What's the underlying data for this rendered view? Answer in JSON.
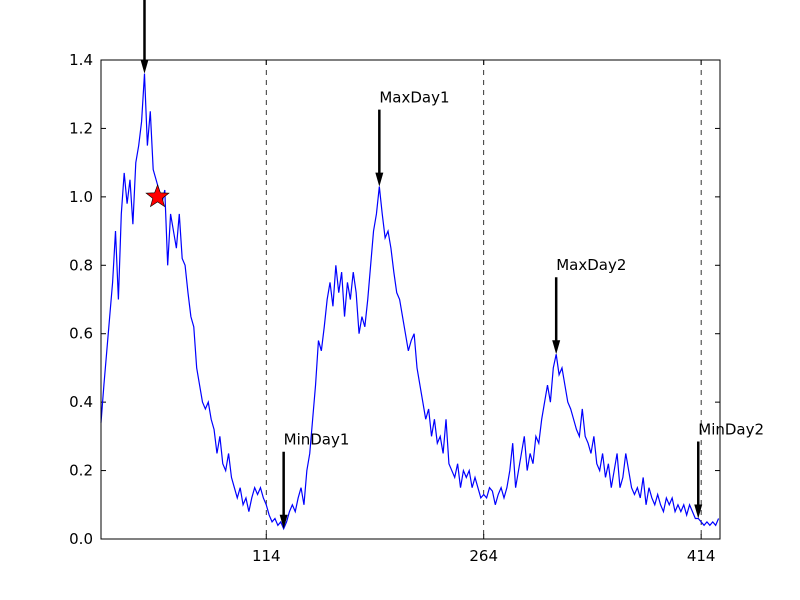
{
  "chart_data": {
    "type": "line",
    "x": [
      0,
      2,
      4,
      6,
      8,
      10,
      12,
      14,
      16,
      18,
      20,
      22,
      24,
      26,
      28,
      30,
      32,
      34,
      36,
      38,
      40,
      42,
      44,
      46,
      48,
      50,
      52,
      54,
      56,
      58,
      60,
      62,
      64,
      66,
      68,
      70,
      72,
      74,
      76,
      78,
      80,
      82,
      84,
      86,
      88,
      90,
      92,
      94,
      96,
      98,
      100,
      102,
      104,
      106,
      108,
      110,
      112,
      114,
      116,
      118,
      120,
      122,
      124,
      126,
      128,
      130,
      132,
      134,
      136,
      138,
      140,
      142,
      144,
      146,
      148,
      150,
      152,
      154,
      156,
      158,
      160,
      162,
      164,
      166,
      168,
      170,
      172,
      174,
      176,
      178,
      180,
      182,
      184,
      186,
      188,
      190,
      192,
      194,
      196,
      198,
      200,
      202,
      204,
      206,
      208,
      210,
      212,
      214,
      216,
      218,
      220,
      222,
      224,
      226,
      228,
      230,
      232,
      234,
      236,
      238,
      240,
      242,
      244,
      246,
      248,
      250,
      252,
      254,
      256,
      258,
      260,
      262,
      264,
      266,
      268,
      270,
      272,
      274,
      276,
      278,
      280,
      282,
      284,
      286,
      288,
      290,
      292,
      294,
      296,
      298,
      300,
      302,
      304,
      306,
      308,
      310,
      312,
      314,
      316,
      318,
      320,
      322,
      324,
      326,
      328,
      330,
      332,
      334,
      336,
      338,
      340,
      342,
      344,
      346,
      348,
      350,
      352,
      354,
      356,
      358,
      360,
      362,
      364,
      366,
      368,
      370,
      372,
      374,
      376,
      378,
      380,
      382,
      384,
      386,
      388,
      390,
      392,
      394,
      396,
      398,
      400,
      402,
      404,
      406,
      408,
      410,
      412,
      414,
      416,
      418,
      420,
      422,
      424,
      426
    ],
    "series": [
      {
        "color": "#0000ff",
        "values": [
          0.34,
          0.45,
          0.55,
          0.65,
          0.75,
          0.9,
          0.7,
          0.95,
          1.07,
          0.98,
          1.05,
          0.92,
          1.1,
          1.15,
          1.22,
          1.36,
          1.15,
          1.25,
          1.08,
          1.05,
          1.02,
          0.98,
          1.02,
          0.8,
          0.95,
          0.9,
          0.85,
          0.95,
          0.82,
          0.8,
          0.72,
          0.65,
          0.62,
          0.5,
          0.45,
          0.4,
          0.38,
          0.4,
          0.35,
          0.32,
          0.25,
          0.3,
          0.22,
          0.2,
          0.25,
          0.18,
          0.15,
          0.12,
          0.15,
          0.1,
          0.12,
          0.08,
          0.12,
          0.15,
          0.13,
          0.15,
          0.12,
          0.1,
          0.07,
          0.05,
          0.06,
          0.04,
          0.05,
          0.03,
          0.05,
          0.08,
          0.1,
          0.08,
          0.12,
          0.15,
          0.1,
          0.2,
          0.25,
          0.35,
          0.45,
          0.58,
          0.55,
          0.62,
          0.7,
          0.75,
          0.68,
          0.8,
          0.72,
          0.78,
          0.65,
          0.75,
          0.7,
          0.78,
          0.72,
          0.6,
          0.65,
          0.62,
          0.7,
          0.8,
          0.9,
          0.95,
          1.03,
          0.95,
          0.88,
          0.9,
          0.85,
          0.78,
          0.72,
          0.7,
          0.65,
          0.6,
          0.55,
          0.58,
          0.6,
          0.5,
          0.45,
          0.4,
          0.35,
          0.38,
          0.3,
          0.35,
          0.28,
          0.3,
          0.25,
          0.35,
          0.22,
          0.2,
          0.18,
          0.22,
          0.15,
          0.2,
          0.18,
          0.2,
          0.15,
          0.18,
          0.15,
          0.12,
          0.13,
          0.12,
          0.15,
          0.14,
          0.1,
          0.13,
          0.15,
          0.12,
          0.15,
          0.2,
          0.28,
          0.15,
          0.2,
          0.25,
          0.3,
          0.2,
          0.25,
          0.22,
          0.3,
          0.28,
          0.35,
          0.4,
          0.45,
          0.4,
          0.5,
          0.54,
          0.48,
          0.5,
          0.45,
          0.4,
          0.38,
          0.35,
          0.32,
          0.3,
          0.38,
          0.3,
          0.28,
          0.25,
          0.3,
          0.22,
          0.2,
          0.25,
          0.18,
          0.22,
          0.15,
          0.2,
          0.25,
          0.15,
          0.18,
          0.25,
          0.2,
          0.15,
          0.13,
          0.15,
          0.12,
          0.18,
          0.1,
          0.15,
          0.12,
          0.1,
          0.13,
          0.1,
          0.08,
          0.12,
          0.1,
          0.12,
          0.08,
          0.1,
          0.08,
          0.1,
          0.07,
          0.1,
          0.08,
          0.06,
          0.06,
          0.05,
          0.04,
          0.05,
          0.04,
          0.05,
          0.04,
          0.06
        ]
      }
    ],
    "xlim": [
      0,
      427
    ],
    "xticks": [
      114,
      264,
      414
    ],
    "ylim": [
      0,
      1.4
    ],
    "yticks": [
      {
        "value": 0,
        "label": "0.0"
      },
      0.2,
      0.4,
      0.6,
      0.8,
      {
        "value": 1,
        "label": "1.0"
      },
      1.2,
      1.4
    ],
    "grid": "x",
    "annotations": [
      {
        "x": 30,
        "y": 1.36
      },
      {
        "text": "MinDay1",
        "x": 126,
        "y": 0.03
      },
      {
        "text": "MaxDay1",
        "x": 192,
        "y": 1.03
      },
      {
        "text": "MaxDay2",
        "x": 314,
        "y": 0.54
      },
      {
        "text": "MinDay2",
        "x": 412,
        "y": 0.06
      }
    ],
    "markers": [
      {
        "x": 39,
        "y": 1.0,
        "color": "#ff0000"
      }
    ]
  }
}
